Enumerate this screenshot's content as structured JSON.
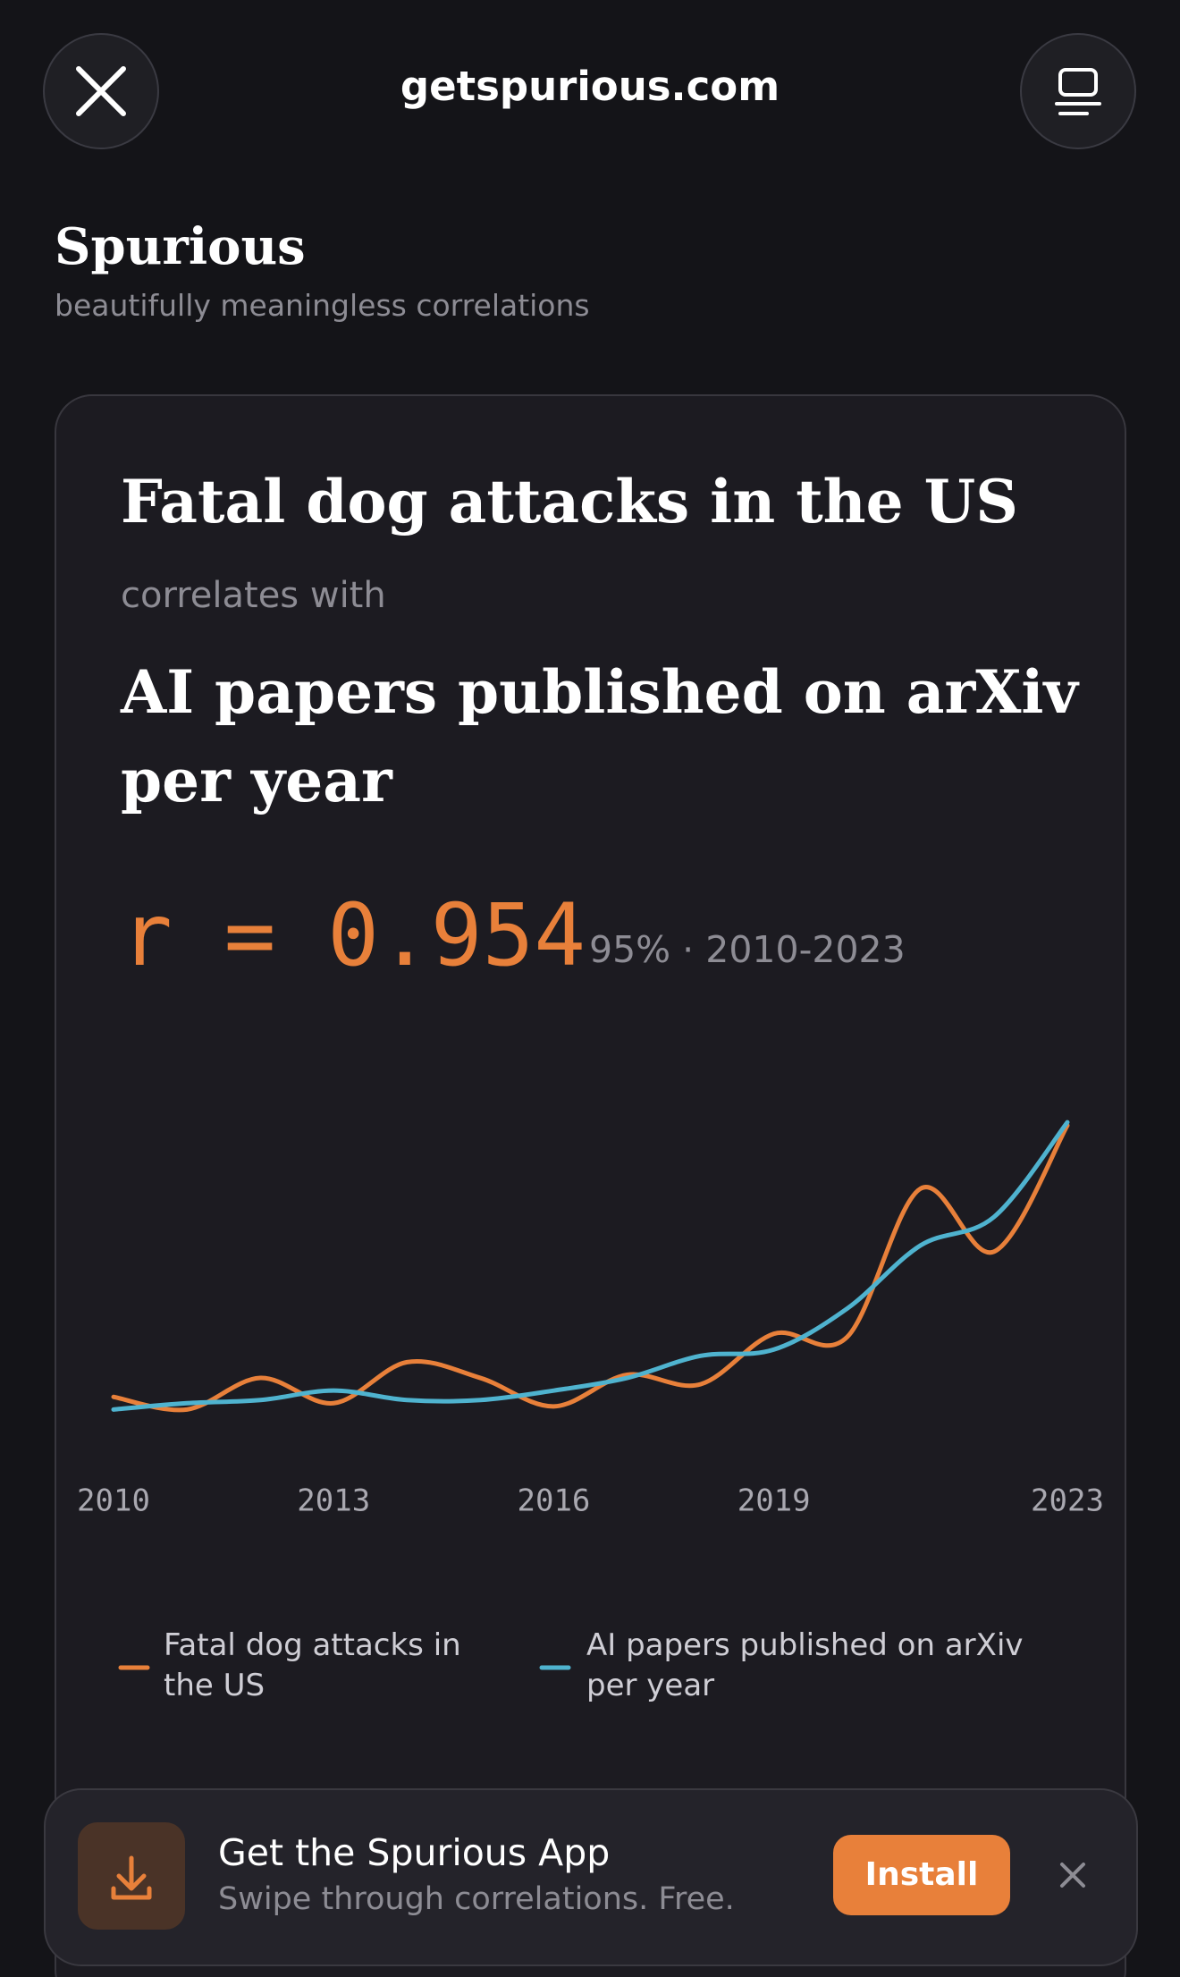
{
  "browser": {
    "url": "getspurious.com"
  },
  "header": {
    "title": "Spurious",
    "subtitle": "beautifully meaningless correlations"
  },
  "card": {
    "variable_a": "Fatal dog attacks in the US",
    "connector": "correlates with",
    "variable_b": "AI papers published on arXiv per year",
    "correlation": "r = 0.954",
    "details": "95% · 2010-2023"
  },
  "chart_data": {
    "type": "line",
    "x": [
      2010,
      2011,
      2012,
      2013,
      2014,
      2015,
      2016,
      2017,
      2018,
      2019,
      2020,
      2021,
      2022,
      2023
    ],
    "xlim": [
      2010,
      2023
    ],
    "xticks": [
      2010,
      2013,
      2016,
      2019,
      2023
    ],
    "ylim": [
      0,
      100
    ],
    "series": [
      {
        "name": "Fatal dog attacks in the US",
        "color": "#e8803a",
        "values": [
          9,
          5,
          15,
          7,
          20,
          15,
          6,
          16,
          13,
          29,
          28,
          75,
          55,
          95
        ]
      },
      {
        "name": "AI papers published on arXiv per year",
        "color": "#4fb3cf",
        "values": [
          5,
          7,
          8,
          11,
          8,
          8,
          11,
          15,
          22,
          24,
          37,
          57,
          66,
          96
        ]
      }
    ]
  },
  "banner": {
    "title": "Get the Spurious App",
    "subtitle": "Swipe through correlations. Free.",
    "button": "Install"
  }
}
